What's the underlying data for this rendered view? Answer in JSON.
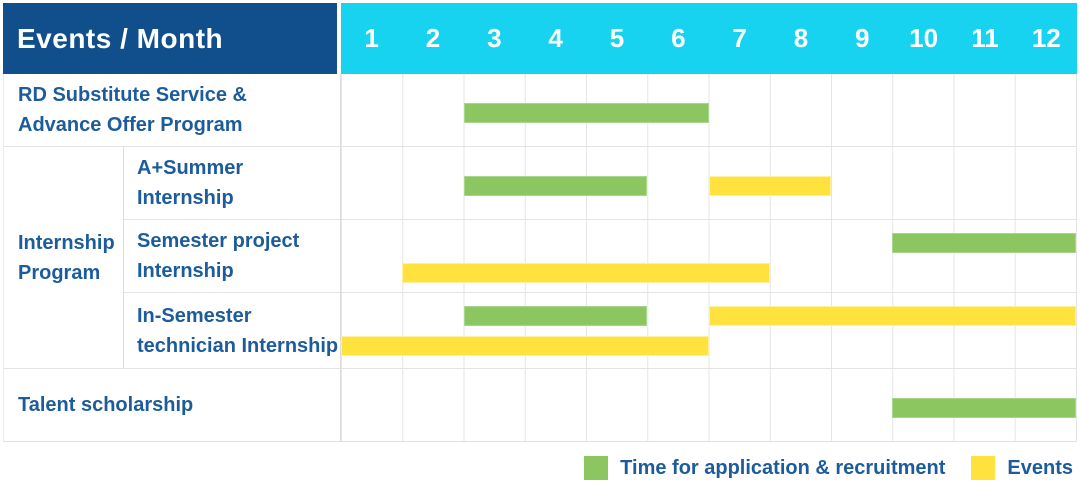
{
  "header": {
    "title": "Events / Month",
    "months": [
      "1",
      "2",
      "3",
      "4",
      "5",
      "6",
      "7",
      "8",
      "9",
      "10",
      "11",
      "12"
    ]
  },
  "colors": {
    "header_bg": "#114e8c",
    "months_bg": "#17d3f0",
    "green": "#8cc661",
    "yellow": "#ffe23e",
    "label_text": "#1d5c9c"
  },
  "legend": [
    {
      "series": "application",
      "label": "Time for application & recruitment"
    },
    {
      "series": "events",
      "label": "Events"
    }
  ],
  "chart_data": {
    "type": "table",
    "subtype": "gantt",
    "x_unit": "month",
    "x_range": [
      1,
      12
    ],
    "series_legend": {
      "application": "Time for application & recruitment",
      "events": "Events"
    },
    "rows": [
      {
        "group": null,
        "label_lines": [
          "RD Substitute Service &",
          "Advance Offer Program"
        ],
        "bars": [
          {
            "series": "application",
            "start": 3,
            "end": 6,
            "lane": "single"
          }
        ]
      },
      {
        "group": "Internship Program",
        "label_lines": [
          "A+Summer",
          "Internship"
        ],
        "bars": [
          {
            "series": "application",
            "start": 3,
            "end": 5,
            "lane": "single"
          },
          {
            "series": "events",
            "start": 7,
            "end": 8,
            "lane": "single"
          }
        ]
      },
      {
        "group": "Internship Program",
        "label_lines": [
          "Semester project",
          "Internship"
        ],
        "bars": [
          {
            "series": "application",
            "start": 10,
            "end": 12,
            "lane": "top"
          },
          {
            "series": "events",
            "start": 2,
            "end": 7,
            "lane": "bottom"
          }
        ]
      },
      {
        "group": "Internship Program",
        "label_lines": [
          "In-Semester",
          "technician Internship"
        ],
        "bars": [
          {
            "series": "application",
            "start": 3,
            "end": 5,
            "lane": "top"
          },
          {
            "series": "events",
            "start": 7,
            "end": 12,
            "lane": "top"
          },
          {
            "series": "events",
            "start": 1,
            "end": 6,
            "lane": "bottom"
          }
        ]
      },
      {
        "group": null,
        "label_lines": [
          "Talent scholarship"
        ],
        "bars": [
          {
            "series": "application",
            "start": 10,
            "end": 12,
            "lane": "single"
          }
        ]
      }
    ],
    "group_label_lines": [
      "Internship",
      "Program"
    ]
  }
}
